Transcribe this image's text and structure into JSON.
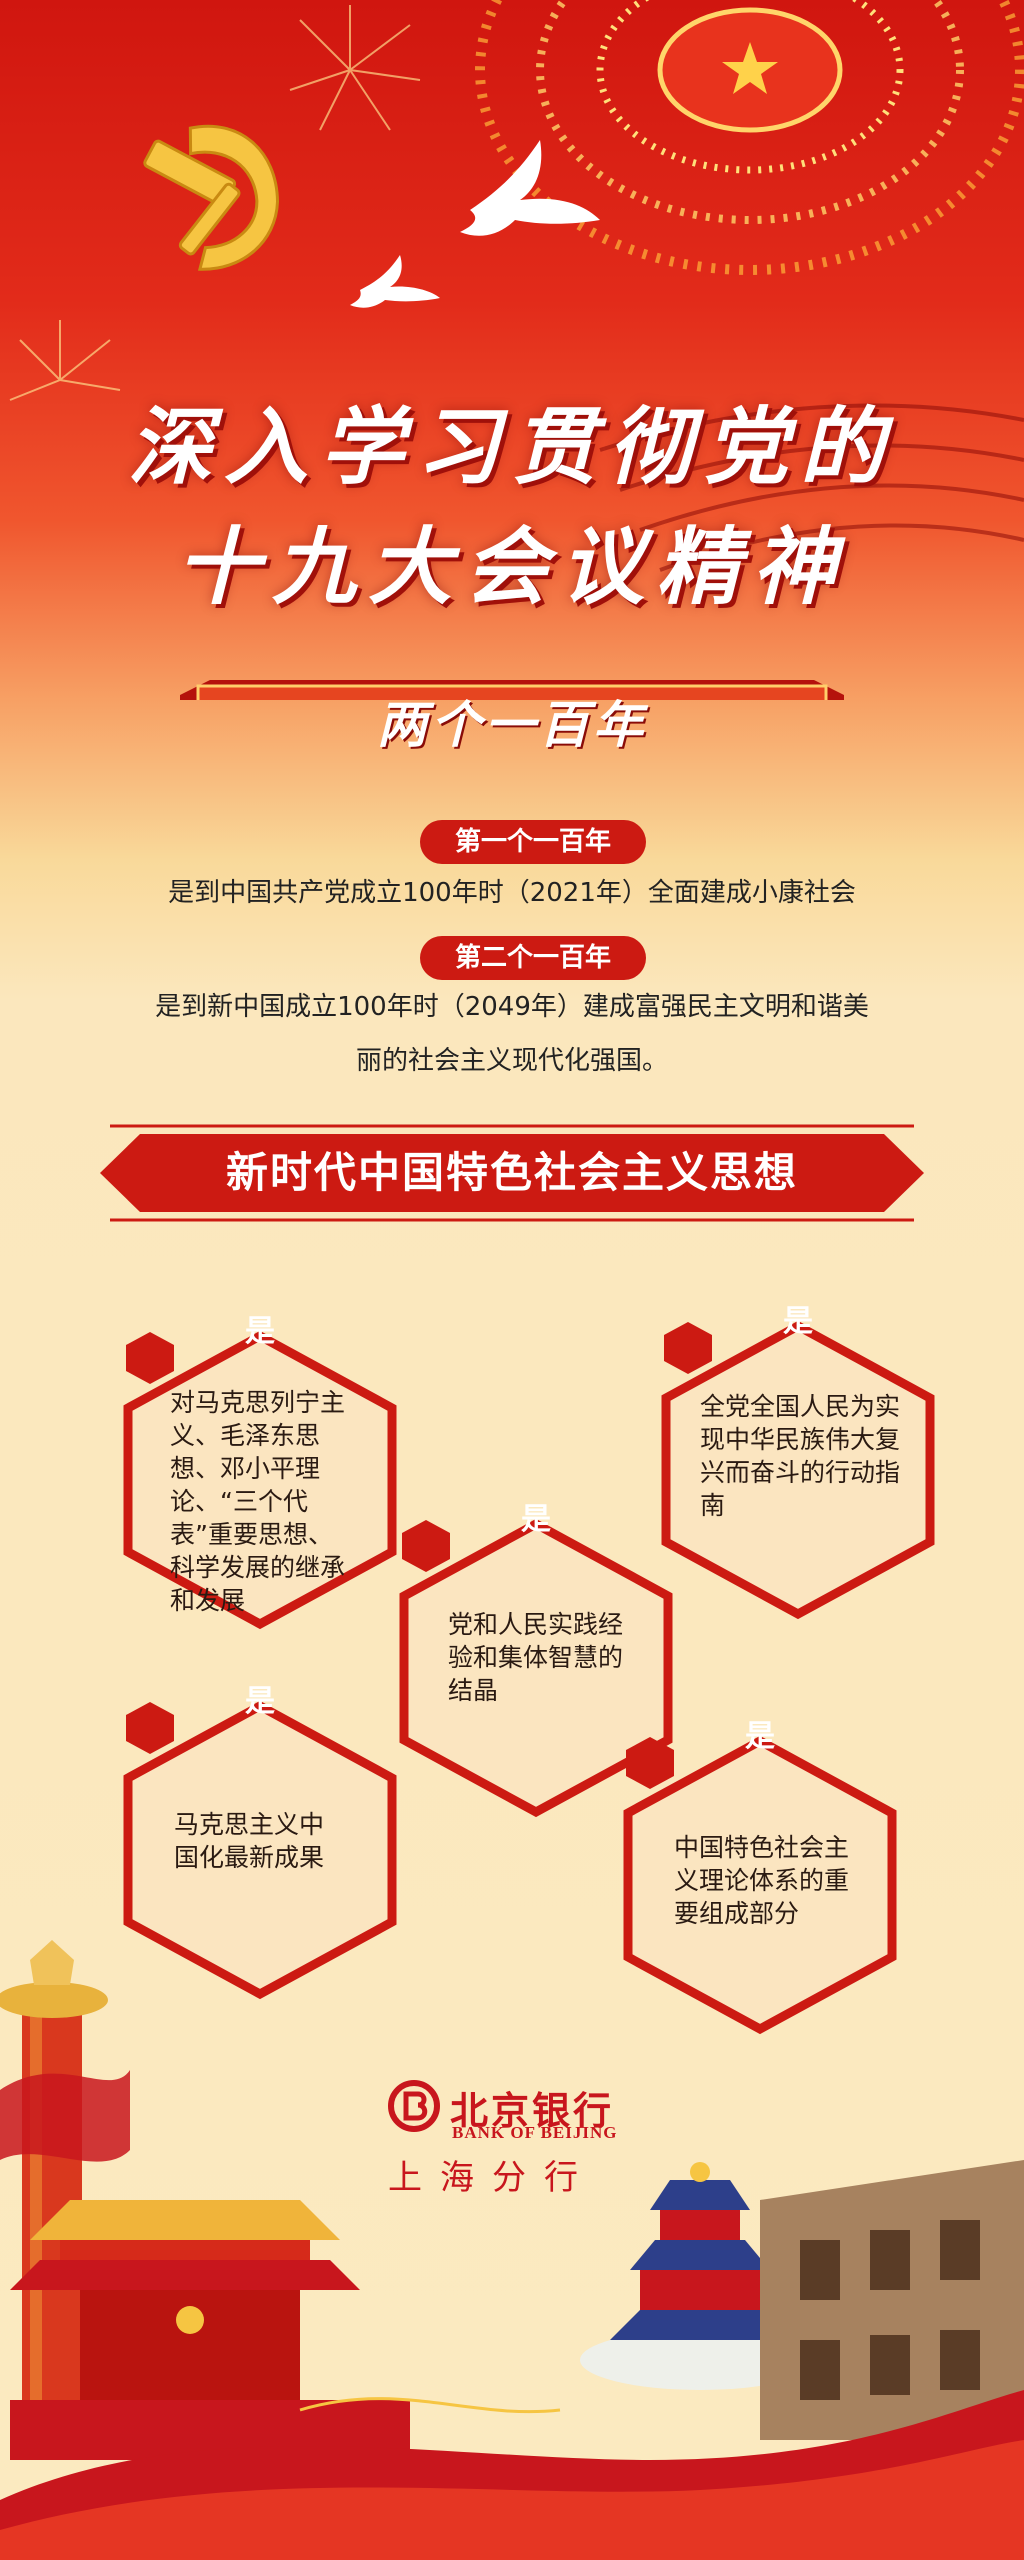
{
  "header": {
    "title_line1": "深入学习贯彻党的",
    "title_line2": "十九大会议精神"
  },
  "section1": {
    "ribbon": "两个一百年",
    "goal1_label": "第一个一百年",
    "goal1_text": "是到中国共产党成立100年时（2021年）全面建成小康社会",
    "goal2_label": "第二个一百年",
    "goal2_text_line1": "是到新中国成立100年时（2049年）建成富强民主文明和谐美",
    "goal2_text_line2": "丽的社会主义现代化强国。"
  },
  "section2": {
    "banner": "新时代中国特色社会主义思想",
    "badge": "是",
    "items": [
      {
        "text": "对马克思列宁主义、毛泽东思想、邓小平理论、“三个代表”重要思想、科学发展的继承和发展"
      },
      {
        "text": "全党全国人民为实现中华民族伟大复兴而奋斗的行动指南"
      },
      {
        "text": "党和人民实践经验和集体智慧的结晶"
      },
      {
        "text": "马克思主义中国化最新成果"
      },
      {
        "text": "中国特色社会主义理论体系的重要组成部分"
      }
    ]
  },
  "footer": {
    "bank_cn": "北京银行",
    "bank_en": "BANK OF BEIJING",
    "branch": "上海分行"
  },
  "colors": {
    "primary_red": "#cc1a12",
    "cream": "#fbeac0",
    "hex_fill": "#fbe5c0",
    "gold": "#f6c542"
  },
  "icons": [
    "party-emblem-icon",
    "dove-icon",
    "national-emblem-icon",
    "bank-logo-icon",
    "huabiao-column-icon",
    "tiananmen-icon",
    "temple-of-heaven-icon"
  ]
}
